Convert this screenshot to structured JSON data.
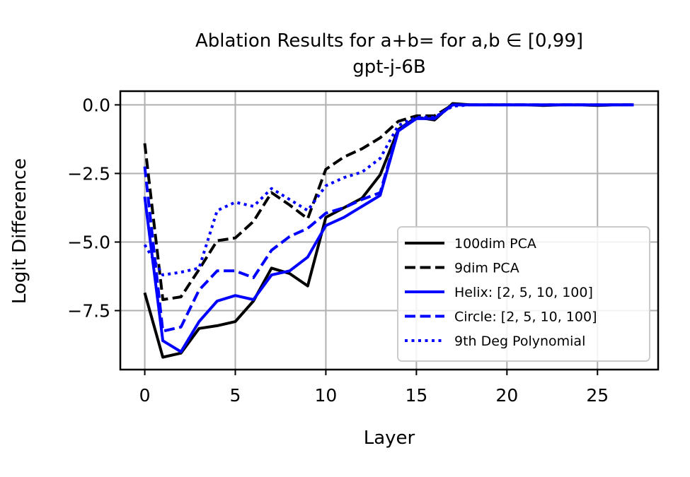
{
  "chart_data": {
    "type": "line",
    "title": "Ablation Results for a+b= for a,b ∈ [0,99]",
    "subtitle": "gpt-j-6B",
    "xlabel": "Layer",
    "ylabel": "Logit Difference",
    "xlim": [
      -1.35,
      28.35
    ],
    "ylim": [
      -9.65,
      0.5
    ],
    "xticks": [
      0,
      5,
      10,
      15,
      20,
      25
    ],
    "xtick_labels": [
      "0",
      "5",
      "10",
      "15",
      "20",
      "25"
    ],
    "yticks": [
      0,
      -2.5,
      -5,
      -7.5
    ],
    "ytick_labels": [
      "0.0",
      "−2.5",
      "−5.0",
      "−7.5"
    ],
    "grid": true,
    "legend_position": "lower-right",
    "x": [
      0,
      1,
      2,
      3,
      4,
      5,
      6,
      7,
      8,
      9,
      10,
      11,
      12,
      13,
      14,
      15,
      16,
      17,
      18,
      19,
      20,
      21,
      22,
      23,
      24,
      25,
      26,
      27
    ],
    "series": [
      {
        "name": "100dim PCA",
        "color": "#000000",
        "dash": "solid",
        "values": [
          -6.85,
          -9.2,
          -9.05,
          -8.15,
          -8.05,
          -7.9,
          -7.15,
          -5.95,
          -6.15,
          -6.6,
          -4.1,
          -3.75,
          -3.4,
          -2.55,
          -0.9,
          -0.45,
          -0.55,
          0.05,
          0.0,
          0.0,
          0.0,
          0.0,
          -0.02,
          0.0,
          0.0,
          -0.02,
          0.0,
          0.0
        ]
      },
      {
        "name": "9dim PCA",
        "color": "#000000",
        "dash": "dashed",
        "values": [
          -1.4,
          -7.1,
          -7.0,
          -6.0,
          -4.95,
          -4.85,
          -4.25,
          -3.2,
          -3.65,
          -4.15,
          -2.35,
          -1.9,
          -1.6,
          -1.2,
          -0.6,
          -0.4,
          -0.4,
          0.0,
          0.0,
          0.0,
          0.0,
          0.0,
          0.0,
          0.0,
          0.0,
          0.0,
          0.0,
          0.0
        ]
      },
      {
        "name": "Helix: [2, 5, 10, 100]",
        "color": "#0000ff",
        "dash": "solid",
        "values": [
          -3.35,
          -8.6,
          -9.0,
          -7.9,
          -7.15,
          -6.95,
          -7.1,
          -6.2,
          -6.05,
          -5.55,
          -4.4,
          -4.1,
          -3.7,
          -3.3,
          -0.95,
          -0.5,
          -0.5,
          0.0,
          0.0,
          0.0,
          0.0,
          0.0,
          0.0,
          0.0,
          0.0,
          0.0,
          0.0,
          0.0
        ]
      },
      {
        "name": "Circle: [2, 5, 10, 100]",
        "color": "#0000ff",
        "dash": "dashed",
        "values": [
          -2.25,
          -8.25,
          -8.1,
          -6.75,
          -6.05,
          -6.05,
          -6.3,
          -5.3,
          -4.8,
          -4.5,
          -3.95,
          -3.75,
          -3.45,
          -3.2,
          -0.9,
          -0.5,
          -0.5,
          0.0,
          0.0,
          0.0,
          0.0,
          0.0,
          0.0,
          0.0,
          0.0,
          0.0,
          0.0,
          0.0
        ]
      },
      {
        "name": "9th Deg Polynomial",
        "color": "#0000ff",
        "dash": "dotted",
        "values": [
          -5.1,
          -6.2,
          -6.1,
          -5.95,
          -3.85,
          -3.55,
          -3.7,
          -3.05,
          -3.45,
          -3.85,
          -2.95,
          -2.65,
          -2.45,
          -1.95,
          -0.75,
          -0.45,
          -0.45,
          -0.05,
          0.0,
          0.0,
          0.0,
          0.0,
          0.0,
          0.0,
          0.0,
          0.0,
          0.0,
          0.0
        ]
      }
    ]
  }
}
